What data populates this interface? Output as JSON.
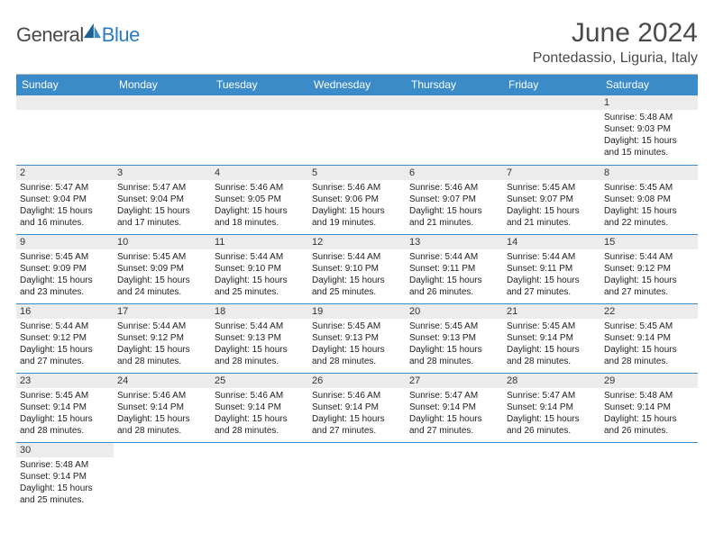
{
  "logo": {
    "general": "General",
    "blue": "Blue"
  },
  "title": "June 2024",
  "location": "Pontedassio, Liguria, Italy",
  "colors": {
    "header_bg": "#3b8bc9",
    "header_text": "#ffffff",
    "daynum_bg": "#ececec",
    "row_border": "#3b8bc9",
    "text": "#222222",
    "logo_gray": "#4a4a4a",
    "logo_blue": "#2b7bbf"
  },
  "weekdays": [
    "Sunday",
    "Monday",
    "Tuesday",
    "Wednesday",
    "Thursday",
    "Friday",
    "Saturday"
  ],
  "weeks": [
    [
      null,
      null,
      null,
      null,
      null,
      null,
      {
        "d": "1",
        "sr": "5:48 AM",
        "ss": "9:03 PM",
        "dh": "15",
        "dm": "15"
      }
    ],
    [
      {
        "d": "2",
        "sr": "5:47 AM",
        "ss": "9:04 PM",
        "dh": "15",
        "dm": "16"
      },
      {
        "d": "3",
        "sr": "5:47 AM",
        "ss": "9:04 PM",
        "dh": "15",
        "dm": "17"
      },
      {
        "d": "4",
        "sr": "5:46 AM",
        "ss": "9:05 PM",
        "dh": "15",
        "dm": "18"
      },
      {
        "d": "5",
        "sr": "5:46 AM",
        "ss": "9:06 PM",
        "dh": "15",
        "dm": "19"
      },
      {
        "d": "6",
        "sr": "5:46 AM",
        "ss": "9:07 PM",
        "dh": "15",
        "dm": "21"
      },
      {
        "d": "7",
        "sr": "5:45 AM",
        "ss": "9:07 PM",
        "dh": "15",
        "dm": "21"
      },
      {
        "d": "8",
        "sr": "5:45 AM",
        "ss": "9:08 PM",
        "dh": "15",
        "dm": "22"
      }
    ],
    [
      {
        "d": "9",
        "sr": "5:45 AM",
        "ss": "9:09 PM",
        "dh": "15",
        "dm": "23"
      },
      {
        "d": "10",
        "sr": "5:45 AM",
        "ss": "9:09 PM",
        "dh": "15",
        "dm": "24"
      },
      {
        "d": "11",
        "sr": "5:44 AM",
        "ss": "9:10 PM",
        "dh": "15",
        "dm": "25"
      },
      {
        "d": "12",
        "sr": "5:44 AM",
        "ss": "9:10 PM",
        "dh": "15",
        "dm": "25"
      },
      {
        "d": "13",
        "sr": "5:44 AM",
        "ss": "9:11 PM",
        "dh": "15",
        "dm": "26"
      },
      {
        "d": "14",
        "sr": "5:44 AM",
        "ss": "9:11 PM",
        "dh": "15",
        "dm": "27"
      },
      {
        "d": "15",
        "sr": "5:44 AM",
        "ss": "9:12 PM",
        "dh": "15",
        "dm": "27"
      }
    ],
    [
      {
        "d": "16",
        "sr": "5:44 AM",
        "ss": "9:12 PM",
        "dh": "15",
        "dm": "27"
      },
      {
        "d": "17",
        "sr": "5:44 AM",
        "ss": "9:12 PM",
        "dh": "15",
        "dm": "28"
      },
      {
        "d": "18",
        "sr": "5:44 AM",
        "ss": "9:13 PM",
        "dh": "15",
        "dm": "28"
      },
      {
        "d": "19",
        "sr": "5:45 AM",
        "ss": "9:13 PM",
        "dh": "15",
        "dm": "28"
      },
      {
        "d": "20",
        "sr": "5:45 AM",
        "ss": "9:13 PM",
        "dh": "15",
        "dm": "28"
      },
      {
        "d": "21",
        "sr": "5:45 AM",
        "ss": "9:14 PM",
        "dh": "15",
        "dm": "28"
      },
      {
        "d": "22",
        "sr": "5:45 AM",
        "ss": "9:14 PM",
        "dh": "15",
        "dm": "28"
      }
    ],
    [
      {
        "d": "23",
        "sr": "5:45 AM",
        "ss": "9:14 PM",
        "dh": "15",
        "dm": "28"
      },
      {
        "d": "24",
        "sr": "5:46 AM",
        "ss": "9:14 PM",
        "dh": "15",
        "dm": "28"
      },
      {
        "d": "25",
        "sr": "5:46 AM",
        "ss": "9:14 PM",
        "dh": "15",
        "dm": "28"
      },
      {
        "d": "26",
        "sr": "5:46 AM",
        "ss": "9:14 PM",
        "dh": "15",
        "dm": "27"
      },
      {
        "d": "27",
        "sr": "5:47 AM",
        "ss": "9:14 PM",
        "dh": "15",
        "dm": "27"
      },
      {
        "d": "28",
        "sr": "5:47 AM",
        "ss": "9:14 PM",
        "dh": "15",
        "dm": "26"
      },
      {
        "d": "29",
        "sr": "5:48 AM",
        "ss": "9:14 PM",
        "dh": "15",
        "dm": "26"
      }
    ],
    [
      {
        "d": "30",
        "sr": "5:48 AM",
        "ss": "9:14 PM",
        "dh": "15",
        "dm": "25"
      },
      null,
      null,
      null,
      null,
      null,
      null
    ]
  ],
  "labels": {
    "sunrise": "Sunrise:",
    "sunset": "Sunset:",
    "daylight_prefix": "Daylight:",
    "hours_word": "hours",
    "and_word": "and",
    "minutes_word": "minutes."
  }
}
